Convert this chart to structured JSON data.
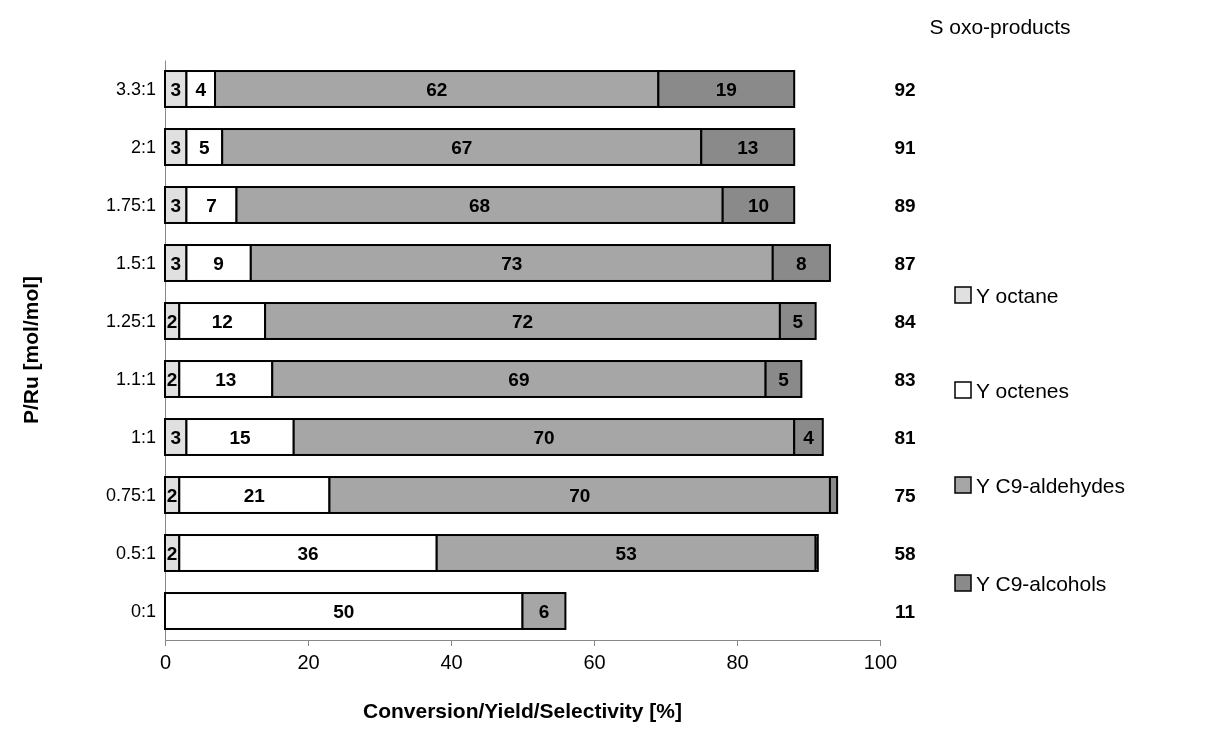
{
  "chart_data": {
    "type": "bar",
    "orientation": "horizontal",
    "stacked": true,
    "xlabel": "Conversion/Yield/Selectivity [%]",
    "ylabel": "P/Ru [mol/mol]",
    "categories": [
      "3.3:1",
      "2:1",
      "1.75:1",
      "1.5:1",
      "1.25:1",
      "1.1:1",
      "1:1",
      "0.75:1",
      "0.5:1",
      "0:1"
    ],
    "xlim": [
      0,
      100
    ],
    "xticks": [
      0,
      20,
      40,
      60,
      80,
      100
    ],
    "grid": false,
    "legend": "right",
    "data_labels": false,
    "series": [
      {
        "name": "Y octane",
        "color": "#e0e0e0",
        "values": [
          3,
          3,
          3,
          3,
          2,
          2,
          3,
          2,
          2,
          0
        ],
        "value_labels": [
          "3",
          "3",
          "3",
          "3",
          "2",
          "2",
          "3",
          "2",
          "2",
          null
        ]
      },
      {
        "name": "Y octenes",
        "color": "#ffffff",
        "values": [
          4,
          5,
          7,
          9,
          12,
          13,
          15,
          21,
          36,
          50
        ],
        "value_labels": [
          "4",
          "5",
          "7",
          "9",
          "12",
          "13",
          "15",
          "21",
          "36",
          "50"
        ]
      },
      {
        "name": "Y C9-aldehydes",
        "color": "#a6a6a6",
        "values": [
          62,
          67,
          68,
          73,
          72,
          69,
          70,
          70,
          53,
          6
        ],
        "value_labels": [
          "62",
          "67",
          "68",
          "73",
          "72",
          "69",
          "70",
          "70",
          "53",
          "6"
        ]
      },
      {
        "name": "Y C9-alcohols",
        "color": "#8a8a8a",
        "values": [
          19,
          13,
          10,
          8,
          5,
          5,
          4,
          1,
          0.3,
          0
        ],
        "value_labels": [
          "19",
          "13",
          "10",
          "8",
          "5",
          "5",
          "4",
          null,
          null,
          null
        ]
      }
    ],
    "annotations": [
      "S oxo-products",
      "92",
      "91",
      "89",
      "87",
      "84",
      "83",
      "81",
      "75",
      "58",
      "11"
    ]
  }
}
